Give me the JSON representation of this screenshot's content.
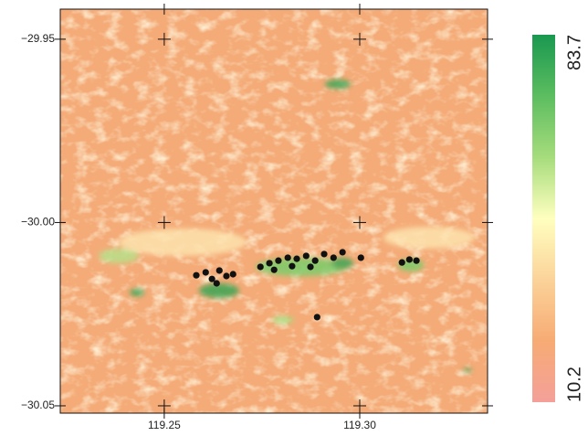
{
  "chart_data": {
    "type": "raster",
    "xlim": [
      119.2234,
      119.3327
    ],
    "ylim": [
      -30.052,
      -29.9418
    ],
    "xticks": [
      119.25,
      {
        "value": 119.3,
        "label": "119.30"
      }
    ],
    "yticks": [
      {
        "value": -30.05,
        "label": "−30.05"
      },
      {
        "value": -30.0,
        "label": "−30.00"
      },
      {
        "value": -29.95,
        "label": "−29.95"
      }
    ],
    "points": {
      "color": "#111111",
      "x": [
        119.2582,
        119.2606,
        119.2622,
        119.2641,
        119.2659,
        119.2676,
        119.2634,
        119.2746,
        119.2769,
        119.2792,
        119.2816,
        119.2839,
        119.2863,
        119.2886,
        119.2909,
        119.2933,
        119.2956,
        119.2781,
        119.2827,
        119.2874,
        119.3108,
        119.3127,
        119.3145,
        119.2891,
        119.3003
      ],
      "y": [
        -30.0144,
        -30.0136,
        -30.0154,
        -30.0131,
        -30.0146,
        -30.0141,
        -30.0166,
        -30.0121,
        -30.0111,
        -30.0104,
        -30.0096,
        -30.0099,
        -30.0091,
        -30.0104,
        -30.0086,
        -30.0096,
        -30.0081,
        -30.0129,
        -30.0119,
        -30.0121,
        -30.0109,
        -30.0101,
        -30.0104,
        -30.0258,
        -30.0096
      ]
    },
    "colorbar": {
      "lim": [
        10.2,
        83.7
      ],
      "colors": [
        "#f4a09a",
        "#f7ab74",
        "#fbd39a",
        "#ffffbf",
        "#a6dc7c",
        "#5cbd60",
        "#1a9850"
      ]
    }
  }
}
